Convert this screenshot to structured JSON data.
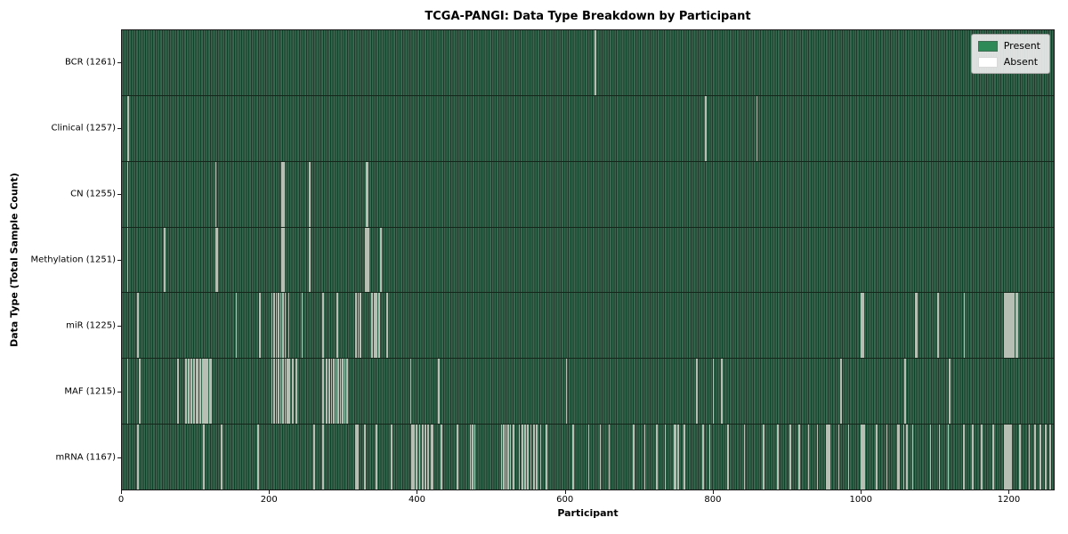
{
  "chart_data": {
    "type": "heatmap",
    "title": "TCGA-PANGI: Data Type Breakdown by Participant",
    "xlabel": "Participant",
    "ylabel": "Data Type (Total Sample Count)",
    "n_participants": 1262,
    "xlim": [
      0,
      1262
    ],
    "x_ticks": [
      0,
      200,
      400,
      600,
      800,
      1000,
      1200
    ],
    "legend": [
      {
        "label": "Present",
        "color": "#2e8b57"
      },
      {
        "label": "Absent",
        "color": "#ffffff"
      }
    ],
    "legend_position": "upper right",
    "colors": {
      "present_fill": "#2e8b57",
      "bar_edge": "#1e382a",
      "absent_line": "#b7bfb4",
      "legend_bg": "#ececec"
    },
    "rows": [
      {
        "data_type": "BCR",
        "label": "BCR (1261)",
        "present_count": 1261,
        "absent_participants": [
          640
        ]
      },
      {
        "data_type": "Clinical",
        "label": "Clinical (1257)",
        "present_count": 1257,
        "absent_participants": [
          7,
          8,
          789,
          790,
          859
        ]
      },
      {
        "data_type": "CN",
        "label": "CN (1255)",
        "present_count": 1255,
        "absent_participants": [
          7,
          126,
          216,
          218,
          253,
          330,
          332
        ]
      },
      {
        "data_type": "Methylation",
        "label": "Methylation (1251)",
        "present_count": 1251,
        "absent_participants": [
          7,
          57,
          126,
          128,
          216,
          218,
          253,
          329,
          331,
          333,
          350
        ]
      },
      {
        "data_type": "miR",
        "label": "miR (1225)",
        "present_count": 1225,
        "absent_participants": [
          21,
          154,
          186,
          202,
          205,
          208,
          211,
          214,
          217,
          220,
          225,
          243,
          271,
          291,
          316,
          319,
          322,
          338,
          341,
          344,
          347,
          358,
          1001,
          1003,
          1074,
          1076,
          1104,
          1140,
          1195,
          1197,
          1199,
          1201,
          1203,
          1205,
          1207,
          1210,
          1212
        ]
      },
      {
        "data_type": "MAF",
        "label": "MAF (1215)",
        "present_count": 1215,
        "absent_participants": [
          7,
          23,
          75,
          86,
          89,
          93,
          97,
          100,
          102,
          105,
          108,
          110,
          112,
          115,
          118,
          120,
          202,
          205,
          208,
          211,
          214,
          217,
          220,
          223,
          226,
          230,
          235,
          271,
          276,
          280,
          283,
          286,
          289,
          292,
          295,
          298,
          301,
          304,
          390,
          428,
          601,
          778,
          800,
          811,
          973,
          1060,
          1120
        ]
      },
      {
        "data_type": "mRNA",
        "label": "mRNA (1167)",
        "present_count": 1167,
        "absent_participants": [
          21,
          110,
          134,
          183,
          259,
          271,
          316,
          318,
          328,
          344,
          364,
          392,
          394,
          398,
          402,
          406,
          410,
          414,
          418,
          420,
          432,
          453,
          471,
          474,
          477,
          513,
          516,
          519,
          522,
          525,
          529,
          537,
          541,
          545,
          549,
          553,
          557,
          561,
          566,
          574,
          610,
          631,
          647,
          659,
          692,
          707,
          723,
          735,
          747,
          749,
          752,
          761,
          786,
          795,
          820,
          842,
          868,
          887,
          904,
          916,
          929,
          941,
          953,
          955,
          957,
          970,
          983,
          1000,
          1002,
          1004,
          1021,
          1035,
          1050,
          1052,
          1058,
          1062,
          1070,
          1094,
          1106,
          1118,
          1139,
          1151,
          1163,
          1179,
          1195,
          1197,
          1199,
          1201,
          1203,
          1215,
          1228,
          1236,
          1243,
          1250,
          1256
        ]
      }
    ]
  }
}
